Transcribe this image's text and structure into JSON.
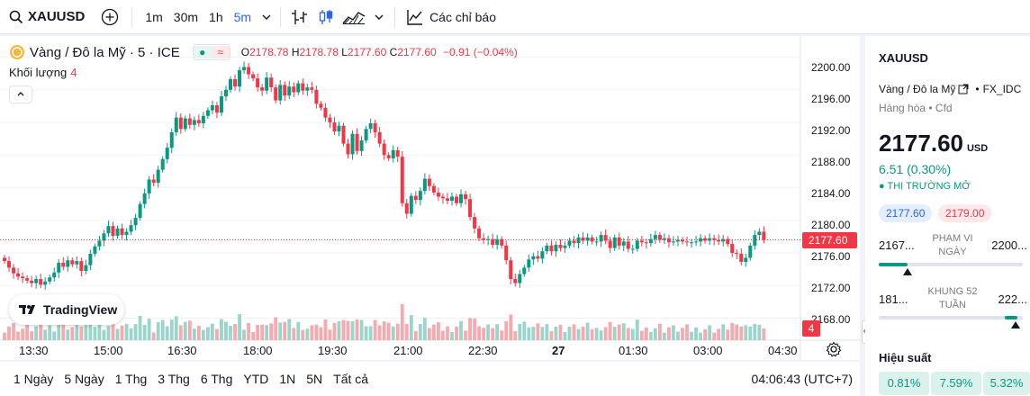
{
  "topbar": {
    "symbol": "XAUUSD",
    "intervals": [
      "1m",
      "30m",
      "1h",
      "5m"
    ],
    "indicators_label": "Các chỉ báo",
    "icons": [
      "search-icon",
      "plus-circle-icon",
      "chevron-down-icon",
      "bar-chart-icon",
      "candles-icon",
      "area-chart-icon",
      "indicators-icon"
    ]
  },
  "legend": {
    "description": "Vàng / Đô la Mỹ · 5 · ICE",
    "open_label": "O",
    "open": "2178.78",
    "high_label": "H",
    "high": "2178.78",
    "low_label": "L",
    "low": "2177.60",
    "close_label": "C",
    "close": "2177.60",
    "change": "−0.91 (−0.04%)",
    "volume_label": "Khối lượng",
    "volume_value": "4"
  },
  "logo": "TradingView",
  "price_axis": {
    "ticks": [
      "2200.00",
      "2196.00",
      "2192.00",
      "2188.00",
      "2184.00",
      "2180.00",
      "2176.00",
      "2172.00",
      "2168.00"
    ],
    "last_price": "2177.60",
    "volume_badge": "4"
  },
  "time_axis": [
    "13:30",
    "15:00",
    "16:30",
    "18:00",
    "19:30",
    "21:00",
    "22:30",
    "27",
    "01:30",
    "03:00",
    "04:30"
  ],
  "bottombar": {
    "ranges": [
      "1 Ngày",
      "5 Ngày",
      "1 Thg",
      "3 Thg",
      "6 Thg",
      "YTD",
      "1N",
      "5N",
      "Tất cả"
    ],
    "clock": "04:06:43 (UTC+7)"
  },
  "sidebar": {
    "symbol": "XAUUSD",
    "description": "Vàng / Đô la Mỹ",
    "exchange": "FX_IDC",
    "category": "Hàng hóa • Cfd",
    "price": "2177.60",
    "currency": "USD",
    "change": "6.51 (0.30%)",
    "market_status": "● THỊ TRƯỜNG MỞ",
    "bid": "2177.60",
    "ask": "2179.00",
    "day_range": {
      "low": "2167...",
      "high": "2200...",
      "label_1": "PHẠM VI",
      "label_2": "NGÀY",
      "fill": 0.2
    },
    "year_range": {
      "low": "181...",
      "high": "222...",
      "label_1": "KHUNG 52",
      "label_2": "TUẦN",
      "fill": 0.94
    },
    "performance_title": "Hiệu suất",
    "performance": [
      "0.81%",
      "7.59%",
      "5.32%"
    ]
  },
  "colors": {
    "up": "#089981",
    "down": "#f23645",
    "accent": "#2962ff",
    "volume_up": "#9bd4cb",
    "volume_down": "#f7a9ae"
  },
  "chart_data": {
    "type": "candlestick",
    "interval": "5",
    "ylim": [
      2165.3,
      2202.6
    ],
    "last_price": 2177.6,
    "closes": [
      2175.0,
      2174.2,
      2173.5,
      2173.1,
      2172.9,
      2172.6,
      2172.3,
      2172.8,
      2172.1,
      2172.5,
      2173.0,
      2173.6,
      2174.8,
      2174.3,
      2175.1,
      2174.6,
      2175.0,
      2173.8,
      2174.5,
      2175.9,
      2176.8,
      2177.5,
      2178.4,
      2179.3,
      2178.1,
      2179.0,
      2178.2,
      2178.6,
      2179.4,
      2180.3,
      2182.0,
      2183.3,
      2185.0,
      2184.6,
      2186.2,
      2187.5,
      2188.9,
      2190.8,
      2192.6,
      2191.2,
      2192.5,
      2191.7,
      2192.3,
      2191.9,
      2192.8,
      2193.5,
      2194.1,
      2193.2,
      2195.2,
      2196.0,
      2197.3,
      2196.4,
      2198.4,
      2198.8,
      2197.9,
      2197.4,
      2196.3,
      2195.9,
      2197.5,
      2196.3,
      2194.7,
      2196.6,
      2195.3,
      2196.4,
      2195.7,
      2196.8,
      2195.9,
      2196.3,
      2196.0,
      2194.3,
      2193.8,
      2192.6,
      2192.0,
      2190.9,
      2191.6,
      2189.4,
      2188.1,
      2190.6,
      2188.5,
      2189.8,
      2191.2,
      2191.9,
      2190.8,
      2189.4,
      2188.0,
      2187.6,
      2188.6,
      2187.8,
      2182.1,
      2180.8,
      2183.0,
      2182.5,
      2183.6,
      2185.1,
      2184.2,
      2183.4,
      2182.9,
      2182.7,
      2182.4,
      2182.9,
      2182.1,
      2183.2,
      2182.6,
      2180.4,
      2179.0,
      2177.8,
      2177.6,
      2177.7,
      2177.0,
      2177.7,
      2176.9,
      2175.1,
      2172.8,
      2172.3,
      2173.4,
      2174.2,
      2175.2,
      2175.6,
      2175.3,
      2176.2,
      2176.9,
      2176.2,
      2177.0,
      2176.6,
      2176.9,
      2177.5,
      2177.2,
      2177.9,
      2177.5,
      2177.9,
      2177.4,
      2177.4,
      2178.2,
      2177.5,
      2176.6,
      2177.9,
      2176.9,
      2177.4,
      2176.5,
      2176.5,
      2177.5,
      2177.3,
      2177.2,
      2177.7,
      2178.2,
      2177.6,
      2177.8,
      2177.3,
      2177.4,
      2177.6,
      2177.4,
      2177.3,
      2177.3,
      2177.4,
      2177.8,
      2177.5,
      2177.8,
      2177.6,
      2177.4,
      2177.7,
      2177.1,
      2176.0,
      2175.9,
      2174.9,
      2175.4,
      2176.9,
      2178.2,
      2178.6,
      2177.6
    ],
    "time_ticks": [
      "13:30",
      "15:00",
      "16:30",
      "18:00",
      "19:30",
      "21:00",
      "22:30",
      "27",
      "01:30",
      "03:00",
      "04:30"
    ]
  }
}
